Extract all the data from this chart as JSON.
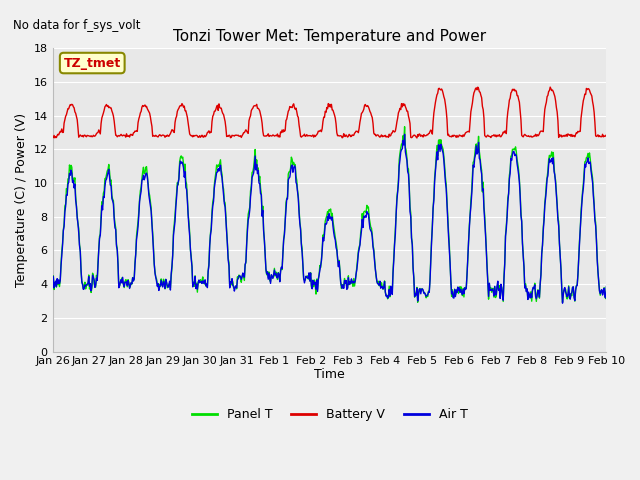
{
  "title": "Tonzi Tower Met: Temperature and Power",
  "top_left_text": "No data for f_sys_volt",
  "ylabel": "Temperature (C) / Power (V)",
  "xlabel": "Time",
  "ylim": [
    0,
    18
  ],
  "yticks": [
    0,
    2,
    4,
    6,
    8,
    10,
    12,
    14,
    16,
    18
  ],
  "xtick_labels": [
    "Jan 26",
    "Jan 27",
    "Jan 28",
    "Jan 29",
    "Jan 30",
    "Jan 31",
    "Feb 1",
    "Feb 2",
    "Feb 3",
    "Feb 4",
    "Feb 5",
    "Feb 6",
    "Feb 7",
    "Feb 8",
    "Feb 9",
    "Feb 10"
  ],
  "legend_entries": [
    "Panel T",
    "Battery V",
    "Air T"
  ],
  "legend_colors": [
    "#00dd00",
    "#dd0000",
    "#0000dd"
  ],
  "annotation_text": "TZ_tmet",
  "annotation_box_facecolor": "#ffffcc",
  "annotation_box_edgecolor": "#888800",
  "fig_bg_color": "#f0f0f0",
  "plot_bg_color": "#e8e8e8",
  "grid_color": "#ffffff",
  "panel_T_color": "#00dd00",
  "battery_V_color": "#dd0000",
  "air_T_color": "#0000dd",
  "line_width": 1.0,
  "title_fontsize": 11,
  "tick_fontsize": 8,
  "ylabel_fontsize": 9,
  "xlabel_fontsize": 9
}
